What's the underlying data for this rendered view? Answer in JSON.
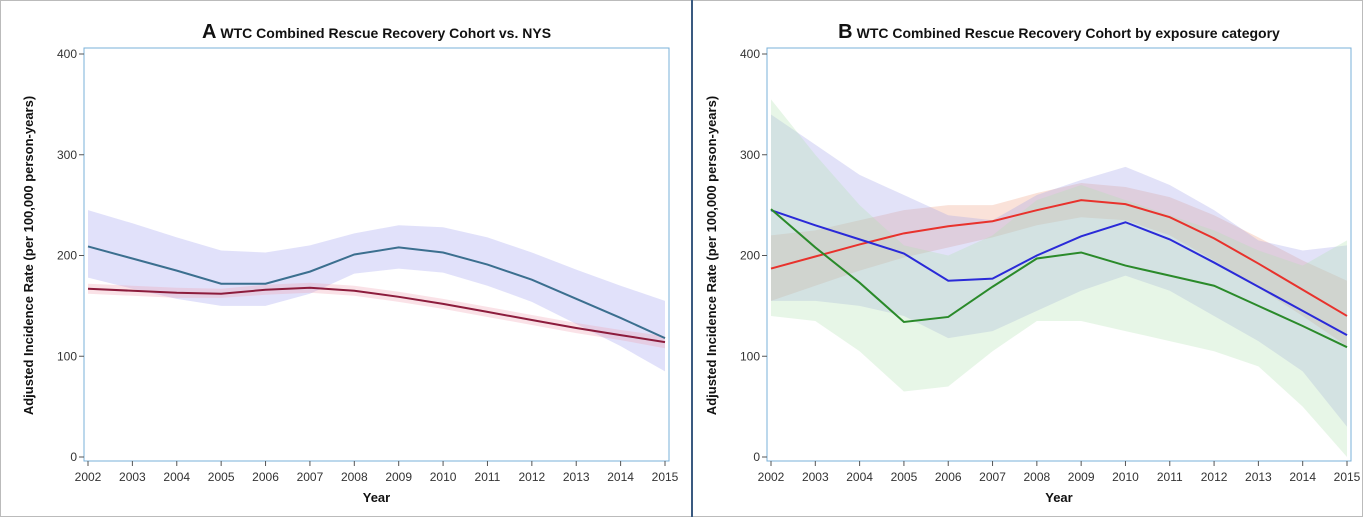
{
  "chart_data": [
    {
      "type": "line",
      "panel_label": "A",
      "title": "WTC Combined Rescue Recovery Cohort vs. NYS",
      "xlabel": "Year",
      "ylabel": "Adjusted Incidence Rate (per 100,000 person-years)",
      "x": [
        2002,
        2003,
        2004,
        2005,
        2006,
        2007,
        2008,
        2009,
        2010,
        2011,
        2012,
        2013,
        2014,
        2015
      ],
      "xlim": [
        2002,
        2015
      ],
      "xticks": [
        2002,
        2003,
        2004,
        2005,
        2006,
        2007,
        2008,
        2009,
        2010,
        2011,
        2012,
        2013,
        2014,
        2015
      ],
      "ylim": [
        0,
        400
      ],
      "yticks": [
        0,
        100,
        200,
        300,
        400
      ],
      "series": [
        {
          "color": "#3b6f8f",
          "band_color": "#9a9af0",
          "values": [
            209,
            197,
            185,
            172,
            172,
            184,
            201,
            208,
            203,
            191,
            176,
            157,
            138,
            118
          ],
          "lower": [
            178,
            167,
            157,
            150,
            150,
            162,
            182,
            187,
            183,
            170,
            154,
            132,
            110,
            85
          ],
          "upper": [
            245,
            232,
            218,
            205,
            203,
            210,
            222,
            230,
            228,
            218,
            203,
            186,
            170,
            155
          ]
        },
        {
          "color": "#8c1c3c",
          "band_color": "#f0a0b0",
          "values": [
            167,
            165,
            163,
            162,
            166,
            168,
            165,
            159,
            152,
            144,
            136,
            128,
            121,
            114
          ],
          "lower": [
            162,
            160,
            158,
            158,
            161,
            163,
            160,
            154,
            147,
            139,
            131,
            123,
            116,
            108
          ],
          "upper": [
            172,
            170,
            168,
            167,
            171,
            173,
            170,
            164,
            157,
            149,
            141,
            133,
            126,
            120
          ]
        }
      ]
    },
    {
      "type": "line",
      "panel_label": "B",
      "title": "WTC Combined Rescue Recovery Cohort by exposure category",
      "xlabel": "Year",
      "ylabel": "Adjusted Incidence Rate (per 100,000 person-years)",
      "x": [
        2002,
        2003,
        2004,
        2005,
        2006,
        2007,
        2008,
        2009,
        2010,
        2011,
        2012,
        2013,
        2014,
        2015
      ],
      "xlim": [
        2002,
        2015
      ],
      "xticks": [
        2002,
        2003,
        2004,
        2005,
        2006,
        2007,
        2008,
        2009,
        2010,
        2011,
        2012,
        2013,
        2014,
        2015
      ],
      "ylim": [
        0,
        400
      ],
      "yticks": [
        0,
        100,
        200,
        300,
        400
      ],
      "series": [
        {
          "color": "#e8322c",
          "band_color": "#f0a080",
          "values": [
            187,
            199,
            211,
            222,
            229,
            234,
            245,
            255,
            251,
            238,
            217,
            192,
            166,
            140
          ],
          "lower": [
            155,
            170,
            185,
            198,
            208,
            218,
            230,
            238,
            235,
            220,
            195,
            168,
            140,
            110
          ],
          "upper": [
            220,
            225,
            235,
            245,
            250,
            250,
            262,
            272,
            268,
            258,
            240,
            218,
            195,
            175
          ]
        },
        {
          "color": "#2a2ad8",
          "band_color": "#a0a0e8",
          "values": [
            245,
            230,
            216,
            202,
            175,
            177,
            200,
            219,
            233,
            216,
            193,
            169,
            145,
            121
          ],
          "lower": [
            155,
            155,
            150,
            140,
            118,
            125,
            145,
            165,
            180,
            165,
            140,
            115,
            85,
            30
          ],
          "upper": [
            340,
            310,
            280,
            260,
            240,
            235,
            260,
            275,
            288,
            270,
            245,
            215,
            205,
            210
          ]
        },
        {
          "color": "#2a8a2a",
          "band_color": "#b0e0b0",
          "values": [
            246,
            208,
            173,
            134,
            139,
            169,
            197,
            203,
            190,
            180,
            170,
            150,
            130,
            109
          ],
          "lower": [
            140,
            135,
            105,
            65,
            70,
            105,
            135,
            135,
            125,
            115,
            105,
            90,
            50,
            0
          ],
          "upper": [
            355,
            300,
            250,
            210,
            200,
            220,
            255,
            270,
            255,
            240,
            225,
            205,
            190,
            215
          ]
        }
      ]
    }
  ]
}
